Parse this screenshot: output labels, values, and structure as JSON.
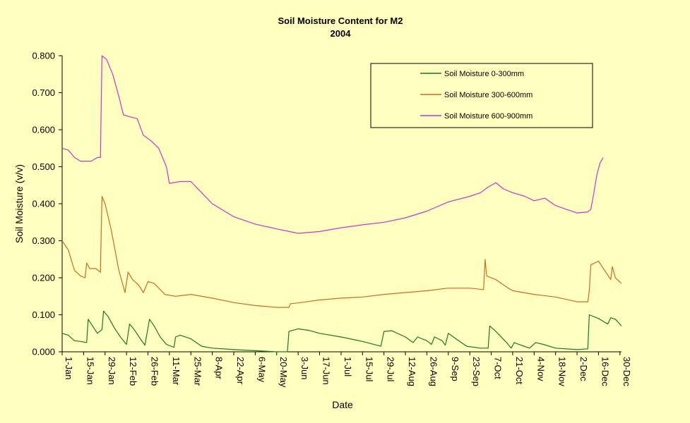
{
  "chart_data": {
    "type": "line",
    "title": "Soil Moisture Content for M2",
    "subtitle": "2004",
    "xlabel": "Date",
    "ylabel": "Soil Moisture (v/v)",
    "ylim": [
      0,
      0.8
    ],
    "yticks": [
      "0.000",
      "0.100",
      "0.200",
      "0.300",
      "0.400",
      "0.500",
      "0.600",
      "0.700",
      "0.800"
    ],
    "x_ticks": [
      "1-Jan",
      "15-Jan",
      "29-Jan",
      "12-Feb",
      "26-Feb",
      "11-Mar",
      "25-Mar",
      "8-Apr",
      "22-Apr",
      "6-May",
      "20-May",
      "3-Jun",
      "17-Jun",
      "1-Jul",
      "15-Jul",
      "29-Jul",
      "12-Aug",
      "26-Aug",
      "9-Sep",
      "23-Sep",
      "7-Oct",
      "21-Oct",
      "4-Nov",
      "18-Nov",
      "2-Dec",
      "16-Dec",
      "30-Dec"
    ],
    "grid": false,
    "legend_position": "top-right",
    "series": [
      {
        "name": "Soil Moisture 0-300mm",
        "color": "#1A7A1A",
        "points": [
          [
            "1-Jan",
            0.05
          ],
          [
            "5-Jan",
            0.045
          ],
          [
            "9-Jan",
            0.03
          ],
          [
            "13-Jan",
            0.028
          ],
          [
            "17-Jan",
            0.025
          ],
          [
            "18-Jan",
            0.088
          ],
          [
            "20-Jan",
            0.075
          ],
          [
            "24-Jan",
            0.05
          ],
          [
            "27-Jan",
            0.06
          ],
          [
            "28-Jan",
            0.11
          ],
          [
            "31-Jan",
            0.095
          ],
          [
            "4-Feb",
            0.065
          ],
          [
            "8-Feb",
            0.04
          ],
          [
            "12-Feb",
            0.02
          ],
          [
            "14-Feb",
            0.075
          ],
          [
            "17-Feb",
            0.06
          ],
          [
            "21-Feb",
            0.035
          ],
          [
            "24-Feb",
            0.018
          ],
          [
            "27-Feb",
            0.088
          ],
          [
            "1-Mar",
            0.07
          ],
          [
            "5-Mar",
            0.04
          ],
          [
            "9-Mar",
            0.02
          ],
          [
            "14-Mar",
            0.012
          ],
          [
            "15-Mar",
            0.04
          ],
          [
            "18-Mar",
            0.045
          ],
          [
            "25-Mar",
            0.035
          ],
          [
            "1-Apr",
            0.015
          ],
          [
            "8-Apr",
            0.01
          ],
          [
            "22-Apr",
            0.006
          ],
          [
            "6-May",
            0.003
          ],
          [
            "20-May",
            0.0
          ],
          [
            "27-May",
            0.0
          ],
          [
            "28-May",
            0.055
          ],
          [
            "3-Jun",
            0.062
          ],
          [
            "10-Jun",
            0.058
          ],
          [
            "17-Jun",
            0.05
          ],
          [
            "1-Jul",
            0.04
          ],
          [
            "15-Jul",
            0.028
          ],
          [
            "27-Jul",
            0.015
          ],
          [
            "29-Jul",
            0.055
          ],
          [
            "3-Aug",
            0.057
          ],
          [
            "12-Aug",
            0.04
          ],
          [
            "17-Aug",
            0.025
          ],
          [
            "20-Aug",
            0.04
          ],
          [
            "26-Aug",
            0.03
          ],
          [
            "29-Aug",
            0.02
          ],
          [
            "31-Aug",
            0.04
          ],
          [
            "5-Sep",
            0.03
          ],
          [
            "7-Sep",
            0.018
          ],
          [
            "9-Sep",
            0.05
          ],
          [
            "14-Sep",
            0.035
          ],
          [
            "21-Sep",
            0.015
          ],
          [
            "30-Sep",
            0.01
          ],
          [
            "5-Oct",
            0.01
          ],
          [
            "6-Oct",
            0.07
          ],
          [
            "10-Oct",
            0.055
          ],
          [
            "17-Oct",
            0.025
          ],
          [
            "20-Oct",
            0.01
          ],
          [
            "22-Oct",
            0.025
          ],
          [
            "25-Oct",
            0.02
          ],
          [
            "1-Nov",
            0.01
          ],
          [
            "5-Nov",
            0.025
          ],
          [
            "10-Nov",
            0.02
          ],
          [
            "18-Nov",
            0.01
          ],
          [
            "2-Dec",
            0.006
          ],
          [
            "9-Dec",
            0.008
          ],
          [
            "10-Dec",
            0.1
          ],
          [
            "16-Dec",
            0.09
          ],
          [
            "22-Dec",
            0.075
          ],
          [
            "24-Dec",
            0.092
          ],
          [
            "27-Dec",
            0.088
          ],
          [
            "31-Dec",
            0.07
          ]
        ]
      },
      {
        "name": "Soil Moisture 300-600mm",
        "color": "#D2691E",
        "points": [
          [
            "1-Jan",
            0.3
          ],
          [
            "5-Jan",
            0.275
          ],
          [
            "9-Jan",
            0.22
          ],
          [
            "13-Jan",
            0.205
          ],
          [
            "16-Jan",
            0.2
          ],
          [
            "17-Jan",
            0.24
          ],
          [
            "19-Jan",
            0.225
          ],
          [
            "23-Jan",
            0.225
          ],
          [
            "26-Jan",
            0.215
          ],
          [
            "27-Jan",
            0.42
          ],
          [
            "29-Jan",
            0.4
          ],
          [
            "2-Feb",
            0.33
          ],
          [
            "7-Feb",
            0.22
          ],
          [
            "11-Feb",
            0.16
          ],
          [
            "13-Feb",
            0.215
          ],
          [
            "16-Feb",
            0.195
          ],
          [
            "20-Feb",
            0.18
          ],
          [
            "23-Feb",
            0.16
          ],
          [
            "26-Feb",
            0.19
          ],
          [
            "1-Mar",
            0.185
          ],
          [
            "8-Mar",
            0.155
          ],
          [
            "15-Mar",
            0.15
          ],
          [
            "25-Mar",
            0.155
          ],
          [
            "8-Apr",
            0.145
          ],
          [
            "22-Apr",
            0.133
          ],
          [
            "6-May",
            0.125
          ],
          [
            "20-May",
            0.12
          ],
          [
            "28-May",
            0.12
          ],
          [
            "29-May",
            0.13
          ],
          [
            "3-Jun",
            0.132
          ],
          [
            "17-Jun",
            0.14
          ],
          [
            "1-Jul",
            0.145
          ],
          [
            "15-Jul",
            0.148
          ],
          [
            "29-Jul",
            0.155
          ],
          [
            "12-Aug",
            0.16
          ],
          [
            "26-Aug",
            0.165
          ],
          [
            "9-Sep",
            0.172
          ],
          [
            "23-Sep",
            0.172
          ],
          [
            "2-Oct",
            0.168
          ],
          [
            "3-Oct",
            0.25
          ],
          [
            "4-Oct",
            0.205
          ],
          [
            "10-Oct",
            0.195
          ],
          [
            "17-Oct",
            0.175
          ],
          [
            "21-Oct",
            0.165
          ],
          [
            "4-Nov",
            0.155
          ],
          [
            "18-Nov",
            0.148
          ],
          [
            "2-Dec",
            0.135
          ],
          [
            "9-Dec",
            0.135
          ],
          [
            "10-Dec",
            0.165
          ],
          [
            "11-Dec",
            0.235
          ],
          [
            "16-Dec",
            0.245
          ],
          [
            "20-Dec",
            0.22
          ],
          [
            "24-Dec",
            0.195
          ],
          [
            "25-Dec",
            0.23
          ],
          [
            "27-Dec",
            0.2
          ],
          [
            "31-Dec",
            0.185
          ]
        ]
      },
      {
        "name": "Soil Moisture 600-900mm",
        "color": "#CC33CC",
        "points": [
          [
            "1-Jan",
            0.55
          ],
          [
            "5-Jan",
            0.545
          ],
          [
            "9-Jan",
            0.525
          ],
          [
            "13-Jan",
            0.515
          ],
          [
            "20-Jan",
            0.515
          ],
          [
            "24-Jan",
            0.525
          ],
          [
            "26-Jan",
            0.525
          ],
          [
            "27-Jan",
            0.8
          ],
          [
            "30-Jan",
            0.79
          ],
          [
            "3-Feb",
            0.75
          ],
          [
            "7-Feb",
            0.69
          ],
          [
            "10-Feb",
            0.64
          ],
          [
            "14-Feb",
            0.635
          ],
          [
            "19-Feb",
            0.63
          ],
          [
            "23-Feb",
            0.585
          ],
          [
            "28-Feb",
            0.57
          ],
          [
            "4-Mar",
            0.55
          ],
          [
            "9-Mar",
            0.5
          ],
          [
            "11-Mar",
            0.455
          ],
          [
            "18-Mar",
            0.46
          ],
          [
            "25-Mar",
            0.46
          ],
          [
            "1-Apr",
            0.43
          ],
          [
            "8-Apr",
            0.4
          ],
          [
            "22-Apr",
            0.365
          ],
          [
            "6-May",
            0.345
          ],
          [
            "20-May",
            0.332
          ],
          [
            "3-Jun",
            0.32
          ],
          [
            "17-Jun",
            0.325
          ],
          [
            "1-Jul",
            0.335
          ],
          [
            "15-Jul",
            0.343
          ],
          [
            "29-Jul",
            0.35
          ],
          [
            "12-Aug",
            0.362
          ],
          [
            "26-Aug",
            0.38
          ],
          [
            "9-Sep",
            0.405
          ],
          [
            "23-Sep",
            0.42
          ],
          [
            "30-Sep",
            0.43
          ],
          [
            "5-Oct",
            0.445
          ],
          [
            "10-Oct",
            0.457
          ],
          [
            "15-Oct",
            0.44
          ],
          [
            "21-Oct",
            0.43
          ],
          [
            "29-Oct",
            0.42
          ],
          [
            "4-Nov",
            0.408
          ],
          [
            "11-Nov",
            0.415
          ],
          [
            "18-Nov",
            0.395
          ],
          [
            "25-Nov",
            0.385
          ],
          [
            "2-Dec",
            0.375
          ],
          [
            "9-Dec",
            0.378
          ],
          [
            "11-Dec",
            0.385
          ],
          [
            "13-Dec",
            0.43
          ],
          [
            "15-Dec",
            0.48
          ],
          [
            "17-Dec",
            0.51
          ],
          [
            "19-Dec",
            0.525
          ]
        ]
      }
    ]
  }
}
